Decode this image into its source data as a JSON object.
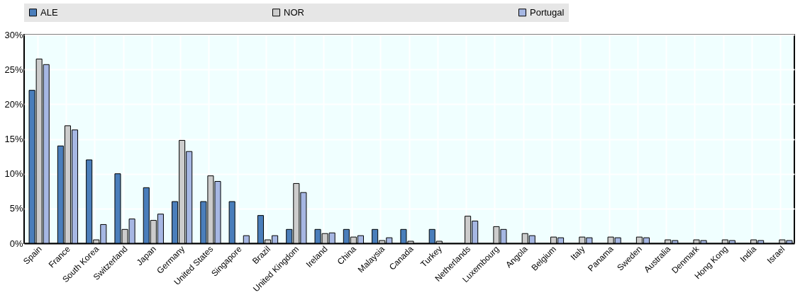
{
  "chart_data": {
    "type": "bar",
    "categories": [
      "Spain",
      "France",
      "South Korea",
      "Switzerland",
      "Japan",
      "Germany",
      "United States",
      "Singapore",
      "Brazil",
      "United Kingdom",
      "Ireland",
      "China",
      "Malaysia",
      "Canada",
      "Turkey",
      "Netherlands",
      "Luxembourg",
      "Angola",
      "Belgium",
      "Italy",
      "Panama",
      "Sweden",
      "Australia",
      "Denmark",
      "Hong Kong",
      "India",
      "Israel"
    ],
    "series": [
      {
        "name": "ALE",
        "color": "#4a7ebb",
        "values": [
          22,
          14,
          12,
          10,
          8,
          6,
          6,
          6,
          4,
          2,
          2,
          2,
          2,
          2,
          2,
          null,
          null,
          null,
          null,
          null,
          null,
          null,
          null,
          null,
          null,
          null,
          null
        ]
      },
      {
        "name": "NOR",
        "color": "#cccccc",
        "values": [
          26.5,
          16.9,
          0.5,
          2,
          3.3,
          14.8,
          9.7,
          null,
          0.5,
          8.6,
          1.4,
          0.9,
          0.4,
          0.3,
          0.3,
          3.9,
          2.4,
          1.4,
          0.9,
          0.9,
          0.9,
          0.9,
          0.5,
          0.5,
          0.5,
          0.5,
          0.5
        ]
      },
      {
        "name": "Portugal",
        "color": "#a6b7e3",
        "values": [
          25.7,
          16.3,
          2.7,
          3.5,
          4.2,
          13.2,
          8.9,
          1.1,
          1.1,
          7.3,
          1.5,
          1.1,
          0.8,
          null,
          null,
          3.2,
          2.0,
          1.1,
          0.8,
          0.8,
          0.8,
          0.8,
          0.4,
          0.4,
          0.4,
          0.4,
          0.4
        ]
      }
    ],
    "ylim": [
      0,
      30
    ],
    "yticks": [
      {
        "value": 0,
        "label": "0%"
      },
      {
        "value": 5,
        "label": "5%"
      },
      {
        "value": 10,
        "label": "10%"
      },
      {
        "value": 15,
        "label": "15%"
      },
      {
        "value": 20,
        "label": "20%"
      },
      {
        "value": 25,
        "label": "25%"
      },
      {
        "value": 30,
        "label": "30%"
      }
    ],
    "grid": true,
    "legend": "top"
  }
}
